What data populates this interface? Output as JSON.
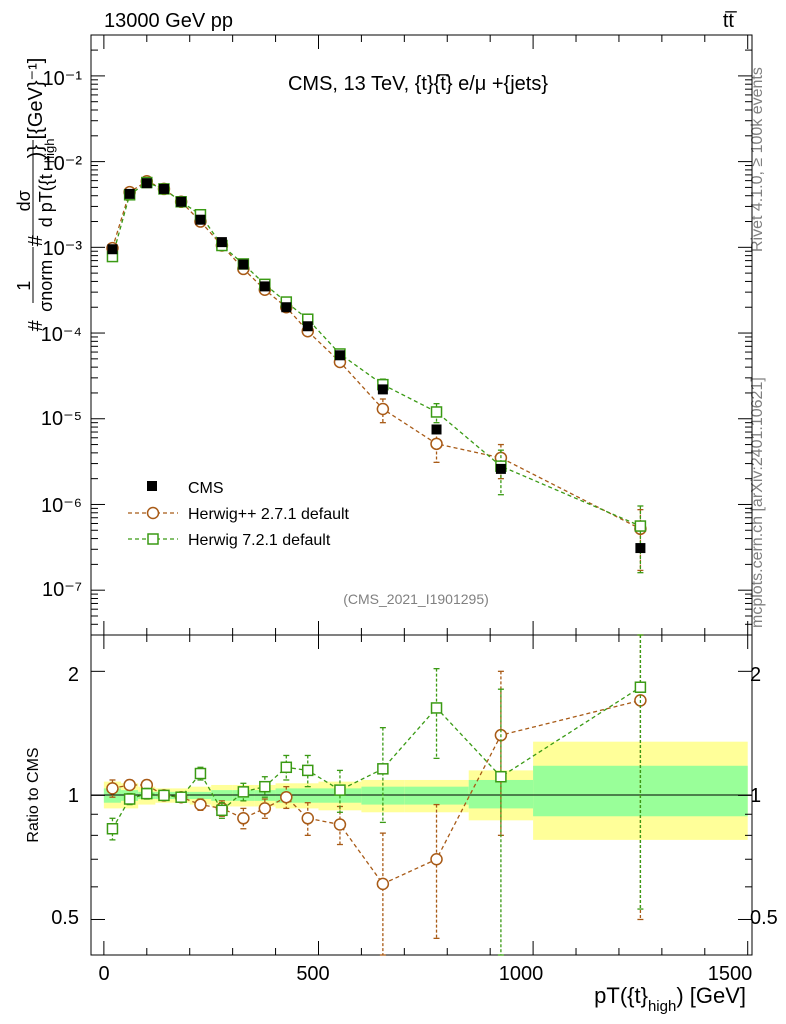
{
  "header": {
    "left": "13000 GeV pp",
    "right": "tt̅"
  },
  "side_labels": {
    "rivet": "Rivet 4.1.0, ≥ 100k events",
    "mcplots": "mcplots.cern.ch [arXiv:2401.10621]"
  },
  "colors": {
    "data": "#000000",
    "herwigpp": "#a85a16",
    "herwig7": "#3a9a14",
    "band_outer": "#ffff99",
    "band_inner": "#99ff99"
  },
  "chart_data": [
    {
      "type": "scatter",
      "title": "CMS, 13 TeV, {t}{t̅} e/μ +{jets}",
      "watermark": "(CMS_2021_I1901295)",
      "ylabel_parts": [
        "#",
        "1",
        "σnorm",
        "#",
        "dσ",
        "d pT({t",
        "high",
        ")} [{GeV}⁻¹]"
      ],
      "yscale": "log",
      "ylim": [
        3e-08,
        0.3
      ],
      "xlim": [
        -30,
        1510
      ],
      "ytick_labels": [
        "10⁻⁷",
        "10⁻⁶",
        "10⁻⁵",
        "10⁻⁴",
        "10⁻³",
        "10⁻²",
        "10⁻¹"
      ],
      "legend": [
        "CMS",
        "Herwig++ 2.7.1 default",
        "Herwig 7.2.1 default"
      ],
      "legend_placement": "lower-left",
      "x": [
        20,
        60,
        100,
        140,
        180,
        225,
        275,
        325,
        375,
        425,
        475,
        550,
        650,
        775,
        925,
        1250
      ],
      "series": [
        {
          "name": "CMS",
          "marker": "filled-square",
          "values": [
            0.00095,
            0.0042,
            0.0056,
            0.0048,
            0.0034,
            0.0021,
            0.00115,
            0.00063,
            0.00035,
            0.0002,
            0.00012,
            5.5e-05,
            2.2e-05,
            7.5e-06,
            2.6e-06,
            3.1e-07
          ]
        },
        {
          "name": "Herwig++ 2.7.1 default",
          "marker": "open-circle",
          "values": [
            0.00098,
            0.0044,
            0.0059,
            0.0048,
            0.0034,
            0.002,
            0.00105,
            0.00056,
            0.00032,
            0.0002,
            0.000105,
            4.6e-05,
            1.3e-05,
            5.1e-06,
            3.5e-06,
            5.2e-07
          ],
          "errors": [
            0.0,
            0.0,
            0.0,
            0.0,
            0.0,
            0.0,
            0.0,
            0.0,
            0.0,
            0.0,
            0.0,
            5e-06,
            4e-06,
            2e-06,
            1.5e-06,
            3.5e-07
          ]
        },
        {
          "name": "Herwig 7.2.1 default",
          "marker": "open-square",
          "values": [
            0.00078,
            0.0041,
            0.0057,
            0.0048,
            0.0034,
            0.0024,
            0.00105,
            0.00064,
            0.00037,
            0.00023,
            0.000145,
            5.7e-05,
            2.5e-05,
            1.2e-05,
            2.8e-06,
            5.6e-07
          ],
          "errors": [
            0.0,
            0.0,
            0.0,
            0.0,
            0.0,
            0.0,
            0.0,
            0.0,
            0.0,
            0.0,
            0.0,
            6e-06,
            4e-06,
            3e-06,
            1.5e-06,
            4e-07
          ]
        }
      ]
    },
    {
      "type": "scatter",
      "ylabel": "Ratio to CMS",
      "xlabel_parts": [
        "pT({t}",
        "high",
        ") [GeV]"
      ],
      "yscale": "log",
      "ylim": [
        0.41,
        2.45
      ],
      "xlim": [
        -30,
        1510
      ],
      "yticks": [
        0.5,
        1,
        2
      ],
      "ytick_labels": [
        "0.5",
        "1",
        "2"
      ],
      "xticks": [
        0,
        500,
        1000,
        1500
      ],
      "xtick_labels": [
        "0",
        "500",
        "1000",
        "1500"
      ],
      "x": [
        20,
        60,
        100,
        140,
        180,
        225,
        275,
        325,
        375,
        425,
        475,
        550,
        650,
        775,
        925,
        1250
      ],
      "bands": {
        "edges": [
          0,
          40,
          80,
          120,
          160,
          200,
          250,
          300,
          350,
          400,
          450,
          500,
          600,
          700,
          850,
          1000,
          1500
        ],
        "outer_lo": [
          0.93,
          0.93,
          0.95,
          0.96,
          0.96,
          0.95,
          0.94,
          0.94,
          0.94,
          0.93,
          0.93,
          0.92,
          0.91,
          0.91,
          0.87,
          0.78
        ],
        "outer_hi": [
          1.08,
          1.07,
          1.05,
          1.04,
          1.04,
          1.05,
          1.06,
          1.06,
          1.06,
          1.07,
          1.07,
          1.08,
          1.09,
          1.09,
          1.15,
          1.35
        ],
        "inner_lo": [
          0.96,
          0.97,
          0.98,
          0.98,
          0.98,
          0.98,
          0.97,
          0.97,
          0.97,
          0.96,
          0.96,
          0.96,
          0.95,
          0.95,
          0.93,
          0.89
        ],
        "inner_hi": [
          1.04,
          1.03,
          1.02,
          1.02,
          1.02,
          1.02,
          1.03,
          1.03,
          1.03,
          1.04,
          1.04,
          1.04,
          1.05,
          1.05,
          1.09,
          1.18
        ]
      },
      "series": [
        {
          "name": "Herwig++ 2.7.1 default",
          "marker": "open-circle",
          "values": [
            1.04,
            1.06,
            1.06,
            1.0,
            0.99,
            0.95,
            0.93,
            0.88,
            0.93,
            0.99,
            0.88,
            0.85,
            0.61,
            0.7,
            1.4,
            1.7
          ],
          "errors": [
            0.05,
            0.03,
            0.03,
            0.02,
            0.02,
            0.03,
            0.04,
            0.05,
            0.05,
            0.06,
            0.08,
            0.09,
            0.2,
            0.25,
            0.6,
            1.2
          ]
        },
        {
          "name": "Herwig 7.2.1 default",
          "marker": "open-square",
          "values": [
            0.83,
            0.98,
            1.01,
            1.0,
            0.99,
            1.13,
            0.92,
            1.02,
            1.05,
            1.17,
            1.15,
            1.03,
            1.16,
            1.63,
            1.11,
            1.83
          ],
          "errors": [
            0.05,
            0.03,
            0.03,
            0.02,
            0.02,
            0.04,
            0.04,
            0.05,
            0.06,
            0.08,
            0.1,
            0.12,
            0.3,
            0.4,
            0.7,
            1.3
          ]
        }
      ]
    }
  ]
}
